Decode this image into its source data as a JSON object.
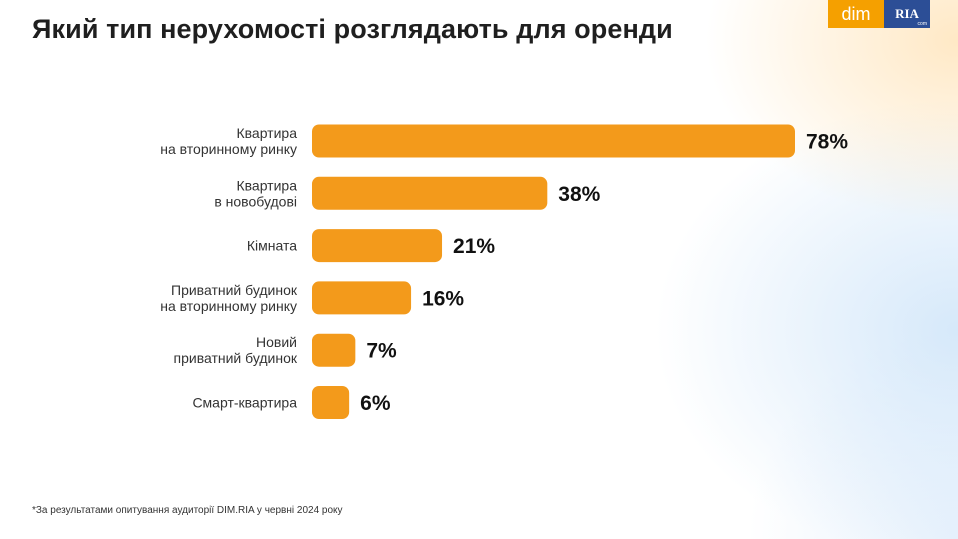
{
  "header": {
    "title": "Який тип нерухомості розглядають для оренди"
  },
  "logo": {
    "dim": "dim",
    "ria": "RIA",
    "ria_sub": "com"
  },
  "colors": {
    "bar": "#f39a1b",
    "label": "#333333",
    "value": "#111111"
  },
  "chart_data": {
    "type": "bar",
    "orientation": "horizontal",
    "categories": [
      [
        "Квартира",
        "на вторинному ринку"
      ],
      [
        "Квартира",
        "в новобудові"
      ],
      [
        "Кімната"
      ],
      [
        "Приватний будинок",
        "на вторинному ринку"
      ],
      [
        "Новий",
        "приватний будинок"
      ],
      [
        "Смарт-квартира"
      ]
    ],
    "values": [
      78,
      38,
      21,
      16,
      7,
      6
    ],
    "value_labels": [
      "78%",
      "38%",
      "21%",
      "16%",
      "7%",
      "6%"
    ],
    "xlim": [
      0,
      78
    ],
    "grid": false,
    "legend": "none"
  },
  "footnote": "*За результатами опитування аудиторії DIM.RIA у червні 2024 року"
}
